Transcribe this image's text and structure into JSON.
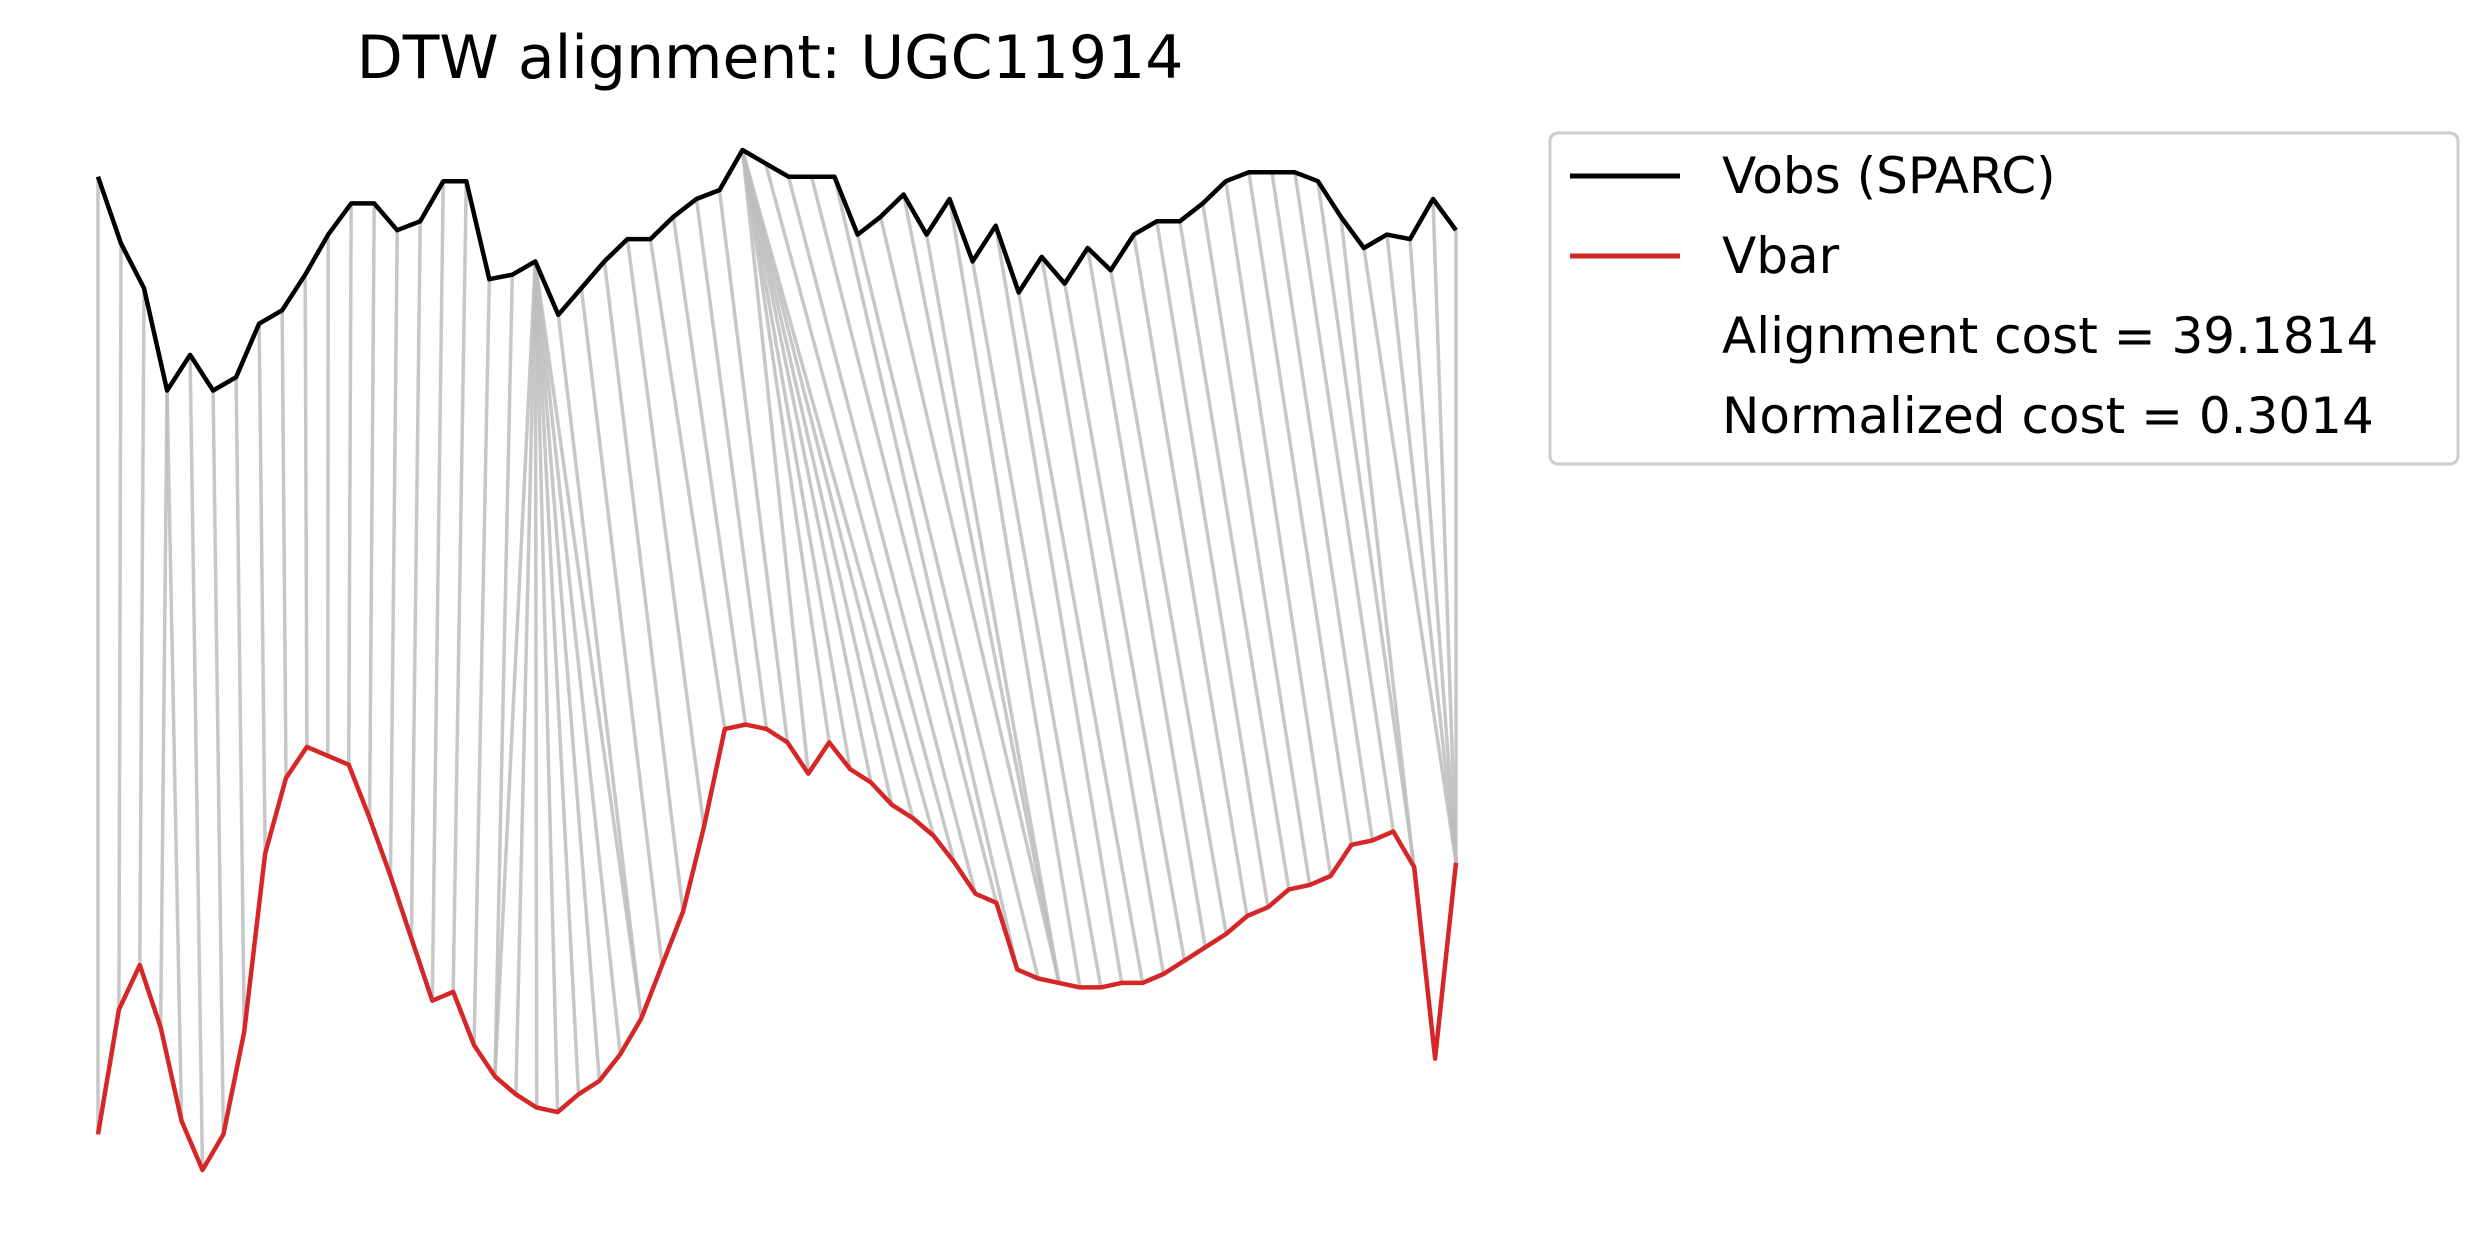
{
  "chart_data": {
    "type": "line",
    "title": "DTW alignment: UGC11914",
    "xlabel": "",
    "ylabel": "",
    "axes_visible": false,
    "grid": false,
    "legend_placement": "outside-right-top",
    "colors": {
      "obs": "#000000",
      "bar": "#d62728",
      "connector": "#bdbdbd"
    },
    "series": [
      {
        "name": "Vobs (SPARC)",
        "values": [
          3.35,
          3.2,
          3.1,
          2.87,
          2.95,
          2.87,
          2.9,
          3.02,
          3.05,
          3.13,
          3.22,
          3.29,
          3.29,
          3.23,
          3.25,
          3.34,
          3.34,
          3.12,
          3.13,
          3.16,
          3.04,
          3.1,
          3.16,
          3.21,
          3.21,
          3.26,
          3.3,
          3.32,
          3.41,
          3.38,
          3.35,
          3.35,
          3.35,
          3.22,
          3.26,
          3.31,
          3.22,
          3.3,
          3.16,
          3.24,
          3.09,
          3.17,
          3.11,
          3.19,
          3.14,
          3.22,
          3.25,
          3.25,
          3.29,
          3.34,
          3.36,
          3.36,
          3.36,
          3.34,
          3.26,
          3.19,
          3.22,
          3.21,
          3.3,
          3.23
        ]
      },
      {
        "name": "Vbar",
        "values": [
          1.2,
          1.48,
          1.58,
          1.44,
          1.23,
          1.12,
          1.2,
          1.43,
          1.83,
          2.0,
          2.07,
          2.05,
          2.03,
          1.91,
          1.78,
          1.64,
          1.5,
          1.52,
          1.4,
          1.33,
          1.29,
          1.26,
          1.25,
          1.29,
          1.32,
          1.38,
          1.46,
          1.58,
          1.7,
          1.89,
          2.11,
          2.12,
          2.11,
          2.08,
          2.01,
          2.08,
          2.02,
          1.99,
          1.94,
          1.91,
          1.87,
          1.81,
          1.74,
          1.72,
          1.57,
          1.55,
          1.54,
          1.53,
          1.53,
          1.54,
          1.54,
          1.56,
          1.59,
          1.62,
          1.65,
          1.69,
          1.71,
          1.75,
          1.76,
          1.78,
          1.85,
          1.86,
          1.88,
          1.8,
          1.37,
          1.81
        ]
      }
    ],
    "warping_path": [
      [
        0,
        0
      ],
      [
        1,
        1
      ],
      [
        2,
        2
      ],
      [
        3,
        3
      ],
      [
        3,
        4
      ],
      [
        4,
        5
      ],
      [
        5,
        6
      ],
      [
        6,
        7
      ],
      [
        7,
        8
      ],
      [
        8,
        9
      ],
      [
        9,
        10
      ],
      [
        10,
        11
      ],
      [
        11,
        12
      ],
      [
        12,
        13
      ],
      [
        13,
        14
      ],
      [
        14,
        15
      ],
      [
        15,
        16
      ],
      [
        16,
        17
      ],
      [
        17,
        18
      ],
      [
        18,
        19
      ],
      [
        19,
        19
      ],
      [
        19,
        20
      ],
      [
        19,
        21
      ],
      [
        19,
        22
      ],
      [
        19,
        23
      ],
      [
        19,
        24
      ],
      [
        19,
        25
      ],
      [
        19,
        26
      ],
      [
        20,
        26
      ],
      [
        21,
        27
      ],
      [
        22,
        28
      ],
      [
        23,
        29
      ],
      [
        24,
        30
      ],
      [
        25,
        31
      ],
      [
        26,
        32
      ],
      [
        27,
        33
      ],
      [
        28,
        34
      ],
      [
        28,
        35
      ],
      [
        28,
        36
      ],
      [
        28,
        37
      ],
      [
        28,
        38
      ],
      [
        28,
        39
      ],
      [
        28,
        40
      ],
      [
        29,
        41
      ],
      [
        30,
        42
      ],
      [
        31,
        43
      ],
      [
        32,
        44
      ],
      [
        33,
        45
      ],
      [
        34,
        46
      ],
      [
        35,
        46
      ],
      [
        36,
        46
      ],
      [
        37,
        47
      ],
      [
        38,
        48
      ],
      [
        39,
        49
      ],
      [
        40,
        50
      ],
      [
        41,
        51
      ],
      [
        42,
        52
      ],
      [
        43,
        53
      ],
      [
        44,
        54
      ],
      [
        45,
        55
      ],
      [
        46,
        56
      ],
      [
        47,
        57
      ],
      [
        48,
        58
      ],
      [
        49,
        59
      ],
      [
        50,
        60
      ],
      [
        51,
        61
      ],
      [
        52,
        62
      ],
      [
        53,
        63
      ],
      [
        54,
        64
      ],
      [
        55,
        65
      ],
      [
        56,
        65
      ],
      [
        57,
        65
      ],
      [
        58,
        65
      ],
      [
        59,
        65
      ]
    ],
    "annotations": [
      "Alignment cost = 39.1814",
      "Normalized cost = 0.3014"
    ]
  }
}
